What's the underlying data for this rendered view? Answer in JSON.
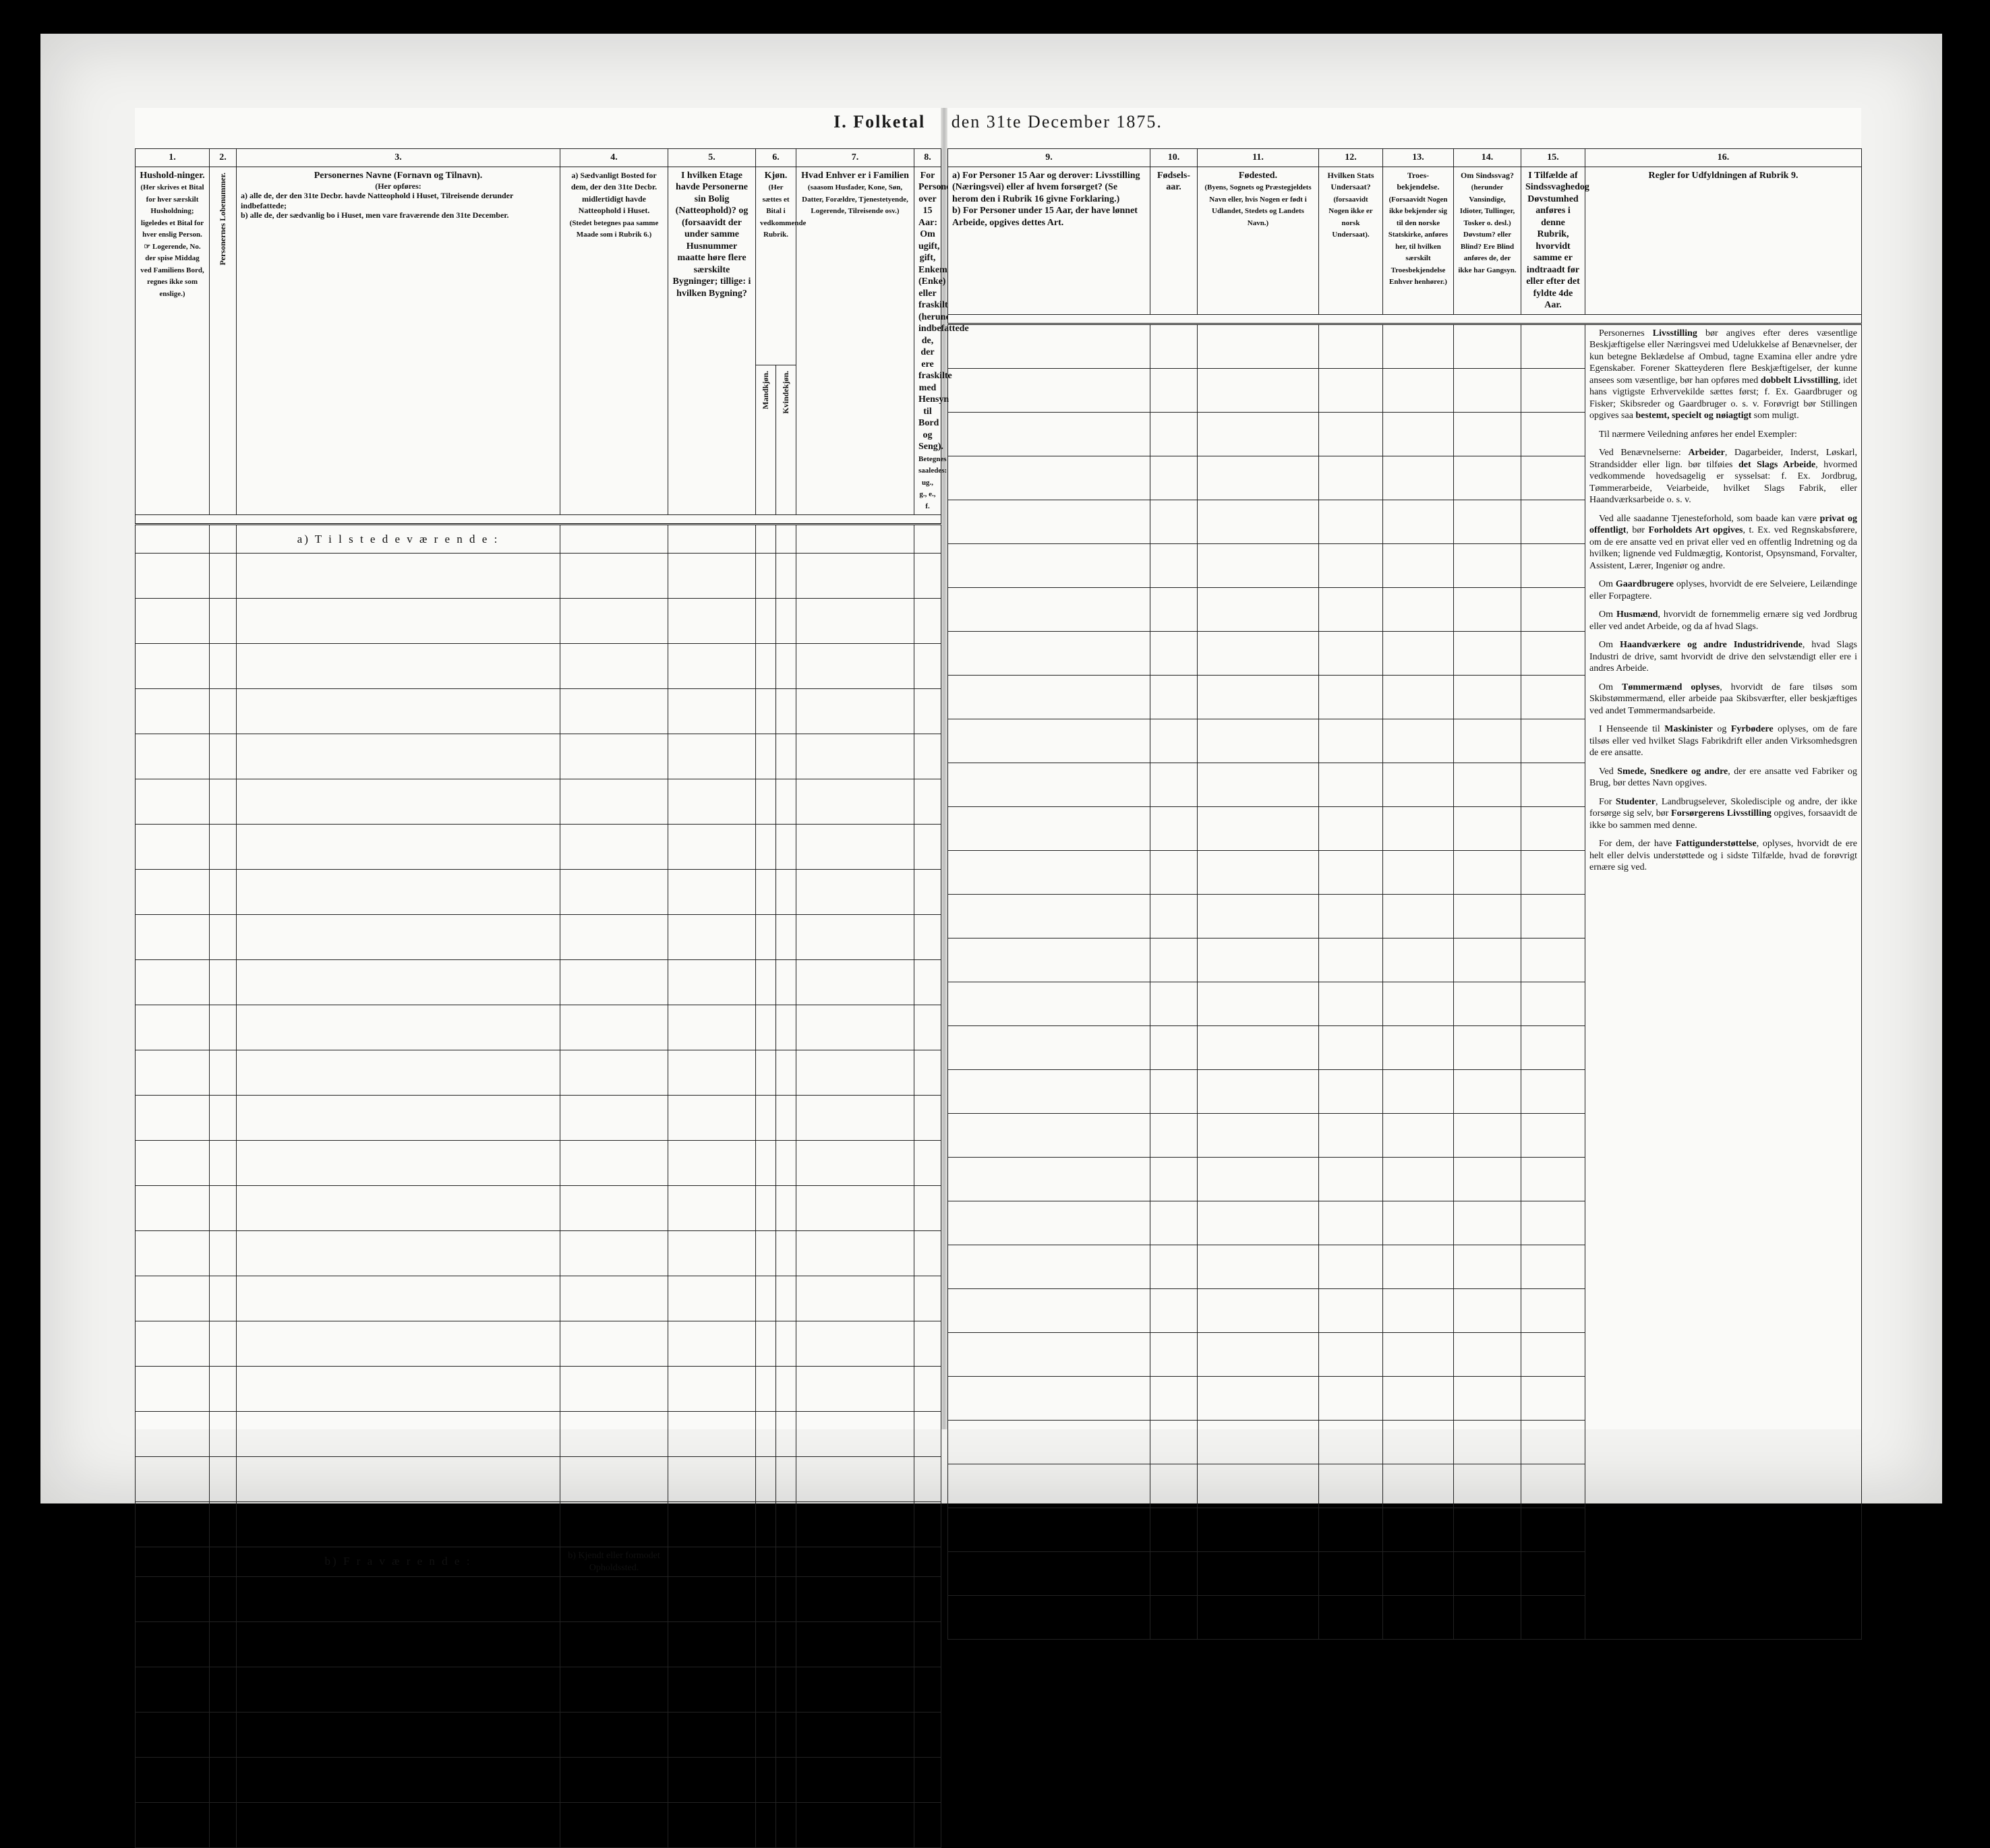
{
  "scan": {
    "background": "#000000",
    "paper": "#fafaf8",
    "frame": "#f2f2f0"
  },
  "title": {
    "left": "I.  Folketal",
    "right": "den 31te December 1875."
  },
  "left_page": {
    "col_nums": [
      "1.",
      "2.",
      "3.",
      "4.",
      "5.",
      "6.",
      "7.",
      "8."
    ],
    "h1": {
      "title": "Hushold-ninger.",
      "sub": "(Her skrives et Bital for hver særskilt Husholdning; ligeledes et Bital for hver enslig Person. ☞ Logerende, No. der spise Middag ved Familiens Bord, regnes ikke som enslige.)"
    },
    "h2": {
      "title": "Personernes Lobenummer."
    },
    "h3": {
      "title": "Personernes Navne (Fornavn og Tilnavn).",
      "sub_intro": "(Her opføres:",
      "sub_a": "a) alle de, der den 31te Decbr. havde Natteophold i Huset, Tilreisende derunder indbefattede;",
      "sub_b": "b) alle de, der sædvanlig bo i Huset, men vare fraværende den 31te December."
    },
    "h4": {
      "title_a": "a) Sædvanligt Bosted for dem, der den 31te Decbr. midlertidigt havde Natteophold i Huset.",
      "sub_a": "(Stedet betegnes paa samme Maade som i Rubrik 6.)",
      "title_b": "b) Kjendt eller formodet Opholdssted."
    },
    "h5": {
      "title": "I hvilken Etage havde Personerne sin Bolig (Natteophold)? og (forsaavidt der under samme Husnummer maatte høre flere særskilte Bygninger; tillige: i hvilken Bygning?"
    },
    "h6": {
      "title": "Kjøn.",
      "sub": "(Her sættes et Bital i vedkommende Rubrik.",
      "col_a": "Mandkjøn.",
      "col_b": "Kvindekjøn."
    },
    "h7": {
      "title": "Hvad Enhver er i Familien",
      "sub": "(saasom Husfader, Kone, Søn, Datter, Forældre, Tjenestetyende, Logerende, Tilreisende osv.)"
    },
    "h8": {
      "title": "For Personer over 15 Aar: Om ugift, gift, Enkemand (Enke) eller fraskilt (herunder indbefattede de, der ere fraskilte med Hensyn til Bord og Seng).",
      "sub": "Betegnes saaledes: ug., g., e., f."
    },
    "section_a": "a)  T i l s t e d e v æ r e n d e :",
    "section_b": "b)  F r a v æ r e n d e :",
    "present_rows": 22,
    "absent_rows": 6
  },
  "right_page": {
    "col_nums": [
      "9.",
      "10.",
      "11.",
      "12.",
      "13.",
      "14.",
      "15.",
      "16."
    ],
    "h9": {
      "a": "a) For Personer 15 Aar og derover: Livsstilling (Næringsvei) eller af hvem forsørget? (Se herom den i Rubrik 16 givne Forklaring.)",
      "b": "b) For Personer under 15 Aar, der have lønnet Arbeide, opgives dettes Art."
    },
    "h10": {
      "title": "Fødsels-aar."
    },
    "h11": {
      "title": "Fødested.",
      "sub": "(Byens, Sognets og Præstegjeldets Navn eller, hvis Nogen er født i Udlandet, Stedets og Landets Navn.)"
    },
    "h12": {
      "title": "Hvilken Stats Undersaat?",
      "sub": "(forsaavidt Nogen ikke er norsk Undersaat)."
    },
    "h13": {
      "title": "Troes-bekjendelse.",
      "sub": "(Forsaavidt Nogen ikke bekjender sig til den norske Statskirke, anføres her, til hvilken særskilt Troesbekjendelse Enhver henhører.)"
    },
    "h14": {
      "title": "Om Sindssvag?",
      "sub": "(herunder Vansindige, Idioter, Tullinger, Tosker o. desl.) Døvstum? eller Blind? Ere Blind anføres de, der ikke har Gangsyn."
    },
    "h15": {
      "title": "I Tilfælde af Sindssvaghedog Døvstumhed anføres i denne Rubrik, hvorvidt samme er indtraadt før eller efter det fyldte 4de Aar."
    },
    "h16": {
      "title": "Regler for Udfyldningen af Rubrik 9."
    },
    "instructions": [
      "Personernes Livsstilling bør angives efter deres væsentlige Beskjæftigelse eller Næringsvei med Udelukkelse af Benævnelser, der kun betegne Beklædelse af Ombud, tagne Examina eller andre ydre Egenskaber. Forener Skatteyderen flere Beskjæftigelser, der kunne ansees som væsentlige, bør han opføres med dobbelt Livsstilling, idet hans vigtigste Erhvervekilde sættes først; f. Ex. Gaardbruger og Fisker; Skibsreder og Gaardbruger o. s. v. Forøvrigt bør Stillingen opgives saa bestemt, specielt og nøiagtigt som muligt.",
      "Til nærmere Veiledning anføres her endel Exempler:",
      "Ved Benævnelserne: Arbeider, Dagarbeider, Inderst, Løskarl, Strandsidder eller lign. bør tilføies det Slags Arbeide, hvormed vedkommende hovedsagelig er sysselsat: f. Ex. Jordbrug, Tømmerarbeide, Veiarbeide, hvilket Slags Fabrik, eller Haandværksarbeide o. s. v.",
      "Ved alle saadanne Tjenesteforhold, som baade kan være privat og offentligt, bør Forholdets Art opgives, t. Ex. ved Regnskabsførere, om de ere ansatte ved en privat eller ved en offentlig Indretning og da hvilken; lignende ved Fuldmægtig, Kontorist, Opsynsmand, Forvalter, Assistent, Lærer, Ingeniør og andre.",
      "Om Gaardbrugere oplyses, hvorvidt de ere Selveiere, Leilændinge eller Forpagtere.",
      "Om Husmænd, hvorvidt de fornemmelig ernære sig ved Jordbrug eller ved andet Arbeide, og da af hvad Slags.",
      "Om Haandværkere og andre Industridrivende, hvad Slags Industri de drive, samt hvorvidt de drive den selvstændigt eller ere i andres Arbeide.",
      "Om Tømmermænd oplyses, hvorvidt de fare tilsøs som Skibstømmermænd, eller arbeide paa Skibsværfter, eller beskjæftiges ved andet Tømmermandsarbeide.",
      "I Henseende til Maskinister og Fyrbødere oplyses, om de fare tilsøs eller ved hvilket Slags Fabrikdrift eller anden Virksomhedsgren de ere ansatte.",
      "Ved Smede, Snedkere og andre, der ere ansatte ved Fabriker og Brug, bør dettes Navn opgives.",
      "For Studenter, Landbrugselever, Skoledisciple og andre, der ikke forsørge sig selv, bør Forsørgerens Livsstilling opgives, forsaavidt de ikke bo sammen med denne.",
      "For dem, der have Fattigunderstøttelse, oplyses, hvorvidt de ere helt eller delvis understøttede og i sidste Tilfælde, hvad de forøvrigt ernære sig ved."
    ]
  }
}
